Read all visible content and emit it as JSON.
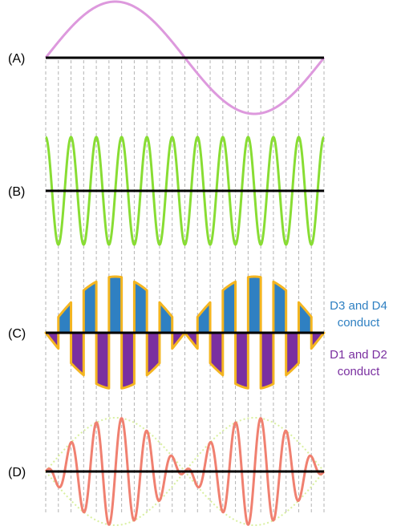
{
  "panels": [
    {
      "label": "(A)"
    },
    {
      "label": "(B)"
    },
    {
      "label": "(C)"
    },
    {
      "label": "(D)"
    }
  ],
  "legend": {
    "d34_line1": "D3 and D4",
    "d34_line2": "conduct",
    "d12_line1": "D1 and D2",
    "d12_line2": "conduct"
  },
  "colors": {
    "modulating": "#dd99dd",
    "carrier": "#88dd33",
    "output": "#f08070",
    "envelope": "#d9f0a0",
    "d34_fill": "#2f80c2",
    "d12_fill": "#7a2fa0",
    "segment_stroke": "#f4b520",
    "d34_text": "#2f80c2",
    "d12_text": "#7a2fa0",
    "axis": "#000000",
    "gridline": "#b3b3b3"
  },
  "signal": {
    "modulating_cycles": 1,
    "carrier_cycles": 11,
    "carrier_half_cycles": 22
  }
}
